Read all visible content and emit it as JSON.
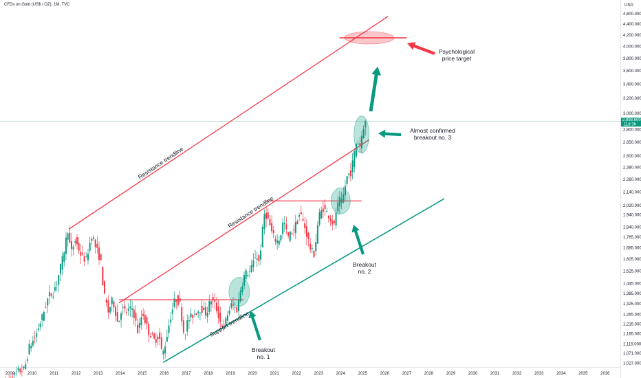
{
  "header": {
    "title": "CFDs on Gold (US$ / OZ), 1M, TVC"
  },
  "chart_data": {
    "type": "candlestick",
    "title": "CFDs on Gold (US$ / OZ), 1M, TVC",
    "y_axis": {
      "label": "USD",
      "scale": "log",
      "range": [
        1000,
        4650
      ],
      "ticks": [
        "4,600.000",
        "4,400.000",
        "4,200.000",
        "4,000.000",
        "3,800.000",
        "3,600.000",
        "3,400.000",
        "3,200.000",
        "3,000.000",
        "2,800.000",
        "2,650.000",
        "2,500.000",
        "2,380.000",
        "2,260.000",
        "2,140.000",
        "2,020.000",
        "1,940.000",
        "1,840.000",
        "1,765.000",
        "1,685.000",
        "1,605.000",
        "1,525.000",
        "1,445.000",
        "1,385.000",
        "1,325.000",
        "1,265.000",
        "1,215.000",
        "1,165.000",
        "1,115.000",
        "1,071.000",
        "1,027.000"
      ]
    },
    "x_axis": {
      "ticks": [
        "2009",
        "2010",
        "2011",
        "2012",
        "2013",
        "2014",
        "2015",
        "2016",
        "2017",
        "2018",
        "2019",
        "2020",
        "2021",
        "2022",
        "2023",
        "2024",
        "2025",
        "2026",
        "2027",
        "2028",
        "2029",
        "2030",
        "2031",
        "2032",
        "2033",
        "2034",
        "2035",
        "2036"
      ]
    },
    "last_price": {
      "value": "2,898.600",
      "countdown": "11d 3h"
    },
    "colors": {
      "up": "#089981",
      "down": "#f23645",
      "resistance": "#f23645",
      "support": "#089981",
      "price_line": "#a8dcc8"
    },
    "anchors": [
      [
        2008.7,
        940
      ],
      [
        2009.0,
        950
      ],
      [
        2009.4,
        990
      ],
      [
        2009.7,
        1000
      ],
      [
        2009.92,
        1100
      ],
      [
        2010.2,
        1150
      ],
      [
        2010.5,
        1250
      ],
      [
        2010.8,
        1370
      ],
      [
        2011.0,
        1390
      ],
      [
        2011.2,
        1470
      ],
      [
        2011.45,
        1620
      ],
      [
        2011.67,
        1825
      ],
      [
        2011.8,
        1640
      ],
      [
        2012.0,
        1740
      ],
      [
        2012.3,
        1620
      ],
      [
        2012.5,
        1600
      ],
      [
        2012.75,
        1780
      ],
      [
        2012.9,
        1700
      ],
      [
        2013.15,
        1600
      ],
      [
        2013.3,
        1380
      ],
      [
        2013.5,
        1280
      ],
      [
        2013.7,
        1350
      ],
      [
        2013.95,
        1210
      ],
      [
        2014.1,
        1300
      ],
      [
        2014.3,
        1280
      ],
      [
        2014.6,
        1300
      ],
      [
        2014.85,
        1170
      ],
      [
        2015.05,
        1280
      ],
      [
        2015.3,
        1180
      ],
      [
        2015.6,
        1130
      ],
      [
        2015.8,
        1160
      ],
      [
        2015.95,
        1060
      ],
      [
        2016.1,
        1120
      ],
      [
        2016.3,
        1240
      ],
      [
        2016.55,
        1360
      ],
      [
        2016.75,
        1320
      ],
      [
        2016.95,
        1150
      ],
      [
        2017.1,
        1230
      ],
      [
        2017.4,
        1270
      ],
      [
        2017.7,
        1300
      ],
      [
        2017.95,
        1270
      ],
      [
        2018.15,
        1350
      ],
      [
        2018.35,
        1320
      ],
      [
        2018.6,
        1220
      ],
      [
        2018.75,
        1200
      ],
      [
        2018.95,
        1280
      ],
      [
        2019.1,
        1320
      ],
      [
        2019.35,
        1290
      ],
      [
        2019.5,
        1410
      ],
      [
        2019.7,
        1510
      ],
      [
        2019.95,
        1520
      ],
      [
        2020.2,
        1640
      ],
      [
        2020.35,
        1580
      ],
      [
        2020.6,
        1970
      ],
      [
        2020.75,
        1900
      ],
      [
        2020.95,
        1780
      ],
      [
        2021.15,
        1730
      ],
      [
        2021.3,
        1760
      ],
      [
        2021.45,
        1900
      ],
      [
        2021.65,
        1760
      ],
      [
        2021.9,
        1820
      ],
      [
        2022.1,
        1900
      ],
      [
        2022.2,
        1960
      ],
      [
        2022.45,
        1820
      ],
      [
        2022.7,
        1660
      ],
      [
        2022.85,
        1640
      ],
      [
        2023.05,
        1930
      ],
      [
        2023.25,
        2000
      ],
      [
        2023.5,
        1940
      ],
      [
        2023.75,
        1850
      ],
      [
        2023.85,
        1990
      ],
      [
        2024.0,
        2060
      ],
      [
        2024.1,
        2040
      ],
      [
        2024.25,
        2200
      ],
      [
        2024.35,
        2300
      ],
      [
        2024.5,
        2330
      ],
      [
        2024.6,
        2440
      ],
      [
        2024.75,
        2640
      ],
      [
        2024.85,
        2650
      ],
      [
        2024.93,
        2620
      ],
      [
        2025.05,
        2810
      ],
      [
        2025.13,
        2898.6
      ]
    ],
    "drawings": {
      "upper_resistance": {
        "label": "Resistance trendline",
        "from": [
          2011.67,
          1825
        ],
        "to": [
          2026.15,
          4550
        ]
      },
      "lower_resistance": {
        "label": "Resistance trendline",
        "from": [
          2013.95,
          1330
        ],
        "to": [
          2025.3,
          2680
        ]
      },
      "support": {
        "label": "Support trendline",
        "from": [
          2015.95,
          1030
        ],
        "to": [
          2028.7,
          2080
        ]
      },
      "horizontal_1": {
        "from": [
          2013.95,
          1348
        ],
        "to": [
          2019.6,
          1348
        ]
      },
      "horizontal_2": {
        "from": [
          2020.55,
          2060
        ],
        "to": [
          2024.95,
          2060
        ]
      },
      "target_line": {
        "from": [
          2023.95,
          4150
        ],
        "to": [
          2027.0,
          4150
        ]
      },
      "target_ellipse": {
        "center": [
          2025.3,
          4150
        ]
      },
      "breakout_1_ellipse": {
        "center": [
          2019.4,
          1395
        ]
      },
      "breakout_2_ellipse": {
        "center": [
          2024.0,
          2060
        ]
      },
      "breakout_3_ellipse": {
        "center": [
          2024.95,
          2740
        ]
      }
    },
    "annotations": {
      "breakout_1": {
        "line1": "Breakout",
        "line2": "no. 1"
      },
      "breakout_2": {
        "line1": "Breakout",
        "line2": "no. 2"
      },
      "breakout_3": {
        "line1": "Almost confirmed",
        "line2": "breakout no. 3"
      },
      "target": {
        "line1": "Psychological",
        "line2": "price target"
      }
    }
  }
}
